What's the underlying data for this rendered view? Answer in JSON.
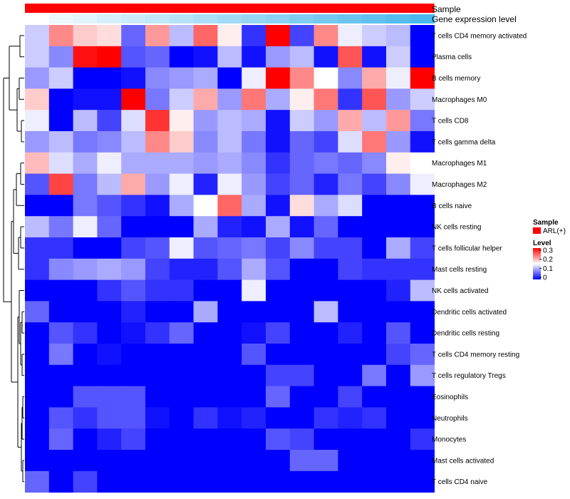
{
  "chart_data": {
    "type": "heatmap",
    "title": "",
    "annotation_tracks": [
      {
        "label": "Sample",
        "color": "#ff0000"
      },
      {
        "label": "Gene expression level",
        "color_low": "#ffffff",
        "color_high": "#4ab8ec"
      }
    ],
    "rows": [
      "T cells CD4 memory activated",
      "Plasma cells",
      "B cells memory",
      "Macrophages M0",
      "T cells CD8",
      "T cells gamma delta",
      "Macrophages M1",
      "Macrophages M2",
      "B cells naive",
      "NK cells resting",
      "T cells follicular helper",
      "Mast cells resting",
      "NK cells activated",
      "Dendritic cells activated",
      "Dendritic cells resting",
      "T cells CD4 memory resting",
      "T cells regulatory  Tregs",
      "Eosinophils",
      "Neutrophils",
      "Monocytes",
      "Mast cells activated",
      "T cells CD4 naive"
    ],
    "values": [
      [
        0.12,
        0.22,
        0.18,
        0.17,
        0.06,
        0.21,
        0.11,
        0.24,
        0.16,
        0.03,
        0.3,
        0.04,
        0.22,
        0.14,
        0.12,
        0.11,
        0.0
      ],
      [
        0.12,
        0.08,
        0.29,
        0.3,
        0.05,
        0.06,
        0.0,
        0.01,
        0.11,
        0.01,
        0.09,
        0.11,
        0.01,
        0.25,
        0.01,
        0.12,
        0.0
      ],
      [
        0.09,
        0.12,
        0.0,
        0.0,
        0.01,
        0.08,
        0.09,
        0.1,
        0.0,
        0.14,
        0.3,
        0.22,
        0.15,
        0.08,
        0.2,
        0.14,
        0.3
      ],
      [
        0.18,
        0.0,
        0.01,
        0.01,
        0.3,
        0.07,
        0.12,
        0.2,
        0.09,
        0.23,
        0.1,
        0.16,
        0.23,
        0.03,
        0.25,
        0.09,
        0.12
      ],
      [
        0.14,
        0.0,
        0.11,
        0.04,
        0.13,
        0.27,
        0.16,
        0.09,
        0.11,
        0.1,
        0.01,
        0.12,
        0.09,
        0.2,
        0.11,
        0.21,
        0.07
      ],
      [
        0.09,
        0.11,
        0.07,
        0.08,
        0.11,
        0.22,
        0.18,
        0.08,
        0.11,
        0.07,
        0.01,
        0.06,
        0.04,
        0.13,
        0.23,
        0.09,
        0.01
      ],
      [
        0.19,
        0.13,
        0.1,
        0.14,
        0.1,
        0.1,
        0.1,
        0.09,
        0.1,
        0.08,
        0.03,
        0.06,
        0.07,
        0.06,
        0.08,
        0.16,
        0.15
      ],
      [
        0.05,
        0.26,
        0.07,
        0.11,
        0.2,
        0.09,
        0.14,
        0.02,
        0.14,
        0.09,
        0.04,
        0.06,
        0.02,
        0.07,
        0.04,
        0.08,
        0.14
      ],
      [
        0.0,
        0.0,
        0.07,
        0.05,
        0.03,
        0.01,
        0.1,
        0.15,
        0.24,
        0.1,
        0.01,
        0.17,
        0.1,
        0.13,
        0.0,
        0.0,
        0.0
      ],
      [
        0.11,
        0.07,
        0.14,
        0.06,
        0.0,
        0.0,
        0.0,
        0.1,
        0.02,
        0.01,
        0.1,
        0.01,
        0.06,
        0.0,
        0.0,
        0.0,
        0.0
      ],
      [
        0.03,
        0.03,
        0.0,
        0.0,
        0.04,
        0.05,
        0.14,
        0.05,
        0.06,
        0.07,
        0.04,
        0.08,
        0.04,
        0.04,
        0.0,
        0.1,
        0.04
      ],
      [
        0.03,
        0.08,
        0.09,
        0.1,
        0.09,
        0.04,
        0.02,
        0.02,
        0.05,
        0.1,
        0.05,
        0.0,
        0.0,
        0.04,
        0.03,
        0.03,
        0.03
      ],
      [
        0.0,
        0.0,
        0.0,
        0.03,
        0.05,
        0.03,
        0.03,
        0.0,
        0.0,
        0.14,
        0.0,
        0.0,
        0.0,
        0.0,
        0.0,
        0.02,
        0.11
      ],
      [
        0.06,
        0.0,
        0.0,
        0.0,
        0.02,
        0.0,
        0.0,
        0.1,
        0.0,
        0.0,
        0.0,
        0.0,
        0.11,
        0.0,
        0.0,
        0.0,
        0.0
      ],
      [
        0.0,
        0.05,
        0.03,
        0.0,
        0.01,
        0.03,
        0.06,
        0.0,
        0.0,
        0.01,
        0.04,
        0.0,
        0.0,
        0.02,
        0.0,
        0.05,
        0.0
      ],
      [
        0.0,
        0.07,
        0.0,
        0.01,
        0.0,
        0.0,
        0.0,
        0.0,
        0.0,
        0.05,
        0.0,
        0.0,
        0.0,
        0.0,
        0.0,
        0.04,
        0.06
      ],
      [
        0.0,
        0.0,
        0.0,
        0.0,
        0.0,
        0.0,
        0.0,
        0.0,
        0.0,
        0.0,
        0.04,
        0.04,
        0.0,
        0.0,
        0.07,
        0.0,
        0.09
      ],
      [
        0.0,
        0.0,
        0.05,
        0.05,
        0.05,
        0.0,
        0.0,
        0.0,
        0.0,
        0.0,
        0.06,
        0.0,
        0.0,
        0.04,
        0.0,
        0.0,
        0.0
      ],
      [
        0.0,
        0.05,
        0.03,
        0.05,
        0.05,
        0.01,
        0.0,
        0.03,
        0.01,
        0.02,
        0.0,
        0.0,
        0.03,
        0.02,
        0.03,
        0.0,
        0.0
      ],
      [
        0.0,
        0.06,
        0.0,
        0.02,
        0.04,
        0.0,
        0.0,
        0.0,
        0.0,
        0.0,
        0.05,
        0.04,
        0.0,
        0.0,
        0.0,
        0.0,
        0.03
      ],
      [
        0.0,
        0.0,
        0.0,
        0.0,
        0.0,
        0.0,
        0.0,
        0.0,
        0.0,
        0.0,
        0.0,
        0.06,
        0.06,
        0.0,
        0.0,
        0.0,
        0.0
      ],
      [
        0.06,
        0.0,
        0.04,
        0.0,
        0.0,
        0.0,
        0.0,
        0.0,
        0.0,
        0.0,
        0.0,
        0.0,
        0.0,
        0.0,
        0.0,
        0.0,
        0.0
      ]
    ],
    "gene_expression_level": [
      0.0,
      0.1,
      0.16,
      0.22,
      0.28,
      0.34,
      0.4,
      0.46,
      0.52,
      0.58,
      0.64,
      0.7,
      0.76,
      0.82,
      0.88,
      0.94,
      1.0
    ],
    "color_scale": {
      "min": 0,
      "max": 0.3,
      "low": "#0000ff",
      "mid": "#ffffff",
      "high": "#ff0000"
    },
    "legend": {
      "sample_title": "Sample",
      "sample_entry": "ARL(+)",
      "level_title": "Level",
      "ticks": [
        "0.3",
        "0.2",
        "0.1",
        "0"
      ]
    }
  }
}
